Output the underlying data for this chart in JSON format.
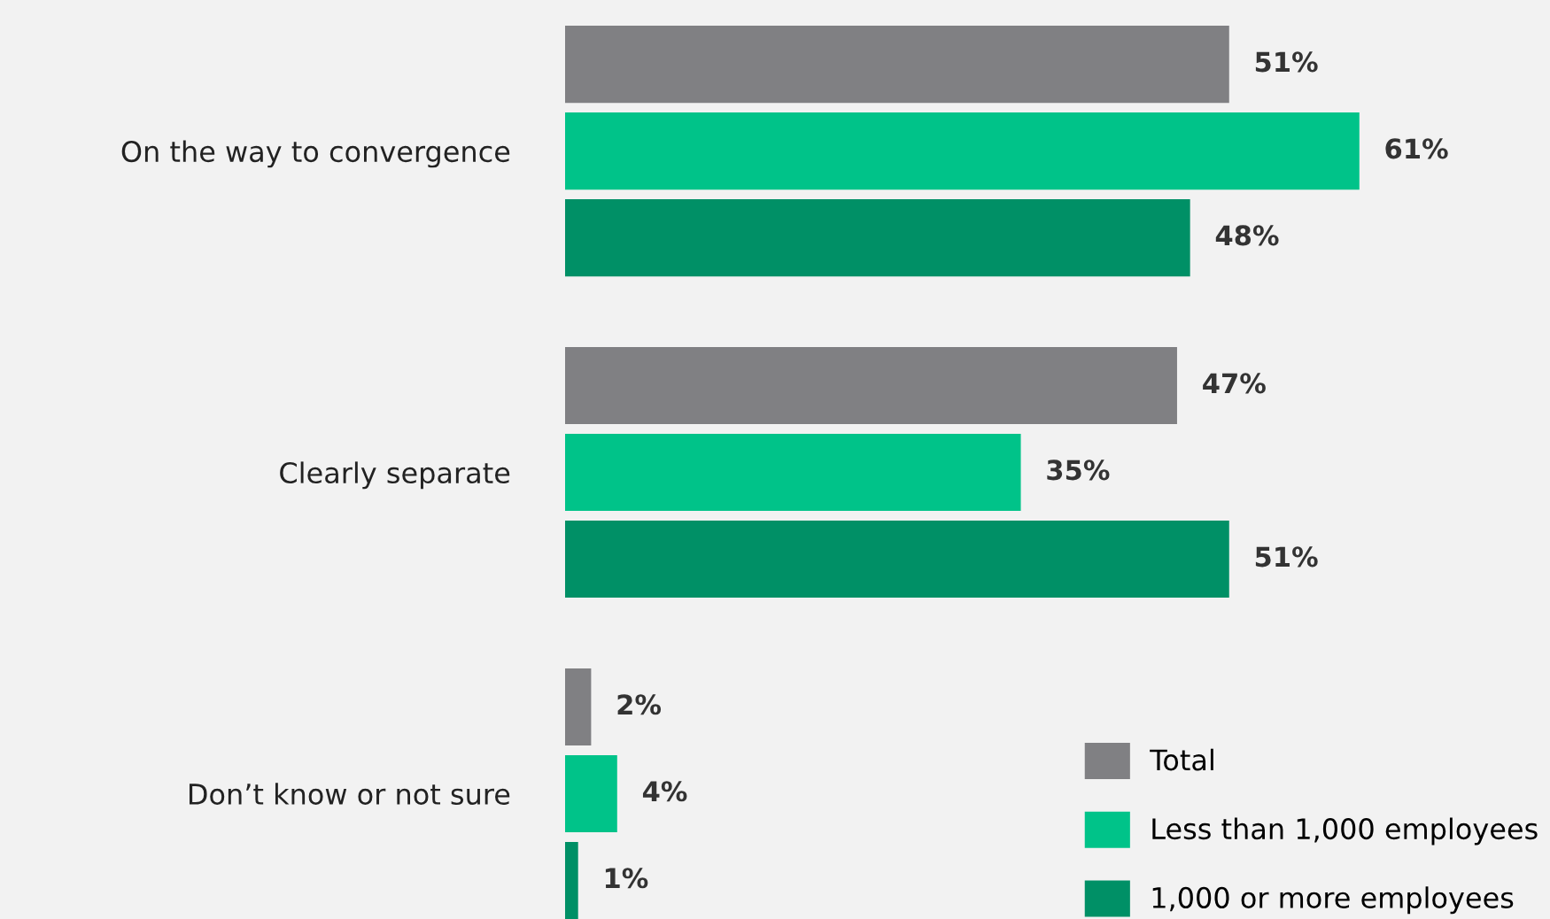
{
  "chart_data": {
    "type": "bar",
    "orientation": "horizontal",
    "categories": [
      "On the way to convergence",
      "Clearly separate",
      "Don’t know or not sure"
    ],
    "series": [
      {
        "name": "Total",
        "color": "#808083",
        "values": [
          51,
          47,
          2
        ],
        "value_labels": [
          "51%",
          "47%",
          "2%"
        ]
      },
      {
        "name": "Less than 1,000 employees",
        "color": "#00c389",
        "values": [
          61,
          35,
          4
        ],
        "value_labels": [
          "61%",
          "35%",
          "4%"
        ]
      },
      {
        "name": "1,000 or more employees",
        "color": "#009066",
        "values": [
          48,
          51,
          1
        ],
        "value_labels": [
          "48%",
          "51%",
          "1%"
        ]
      }
    ],
    "tick_labels": "y",
    "grid": false,
    "legend": "bottom right"
  }
}
